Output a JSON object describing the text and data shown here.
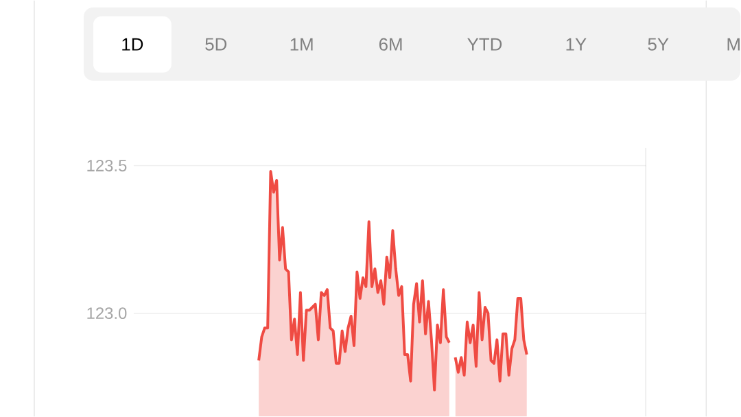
{
  "chart_data": {
    "type": "area",
    "annotations": [
      "1D",
      "5D",
      "1M",
      "6M",
      "YTD",
      "1Y",
      "5Y",
      "M"
    ],
    "categories": [
      null,
      null,
      null,
      null,
      null,
      null,
      null,
      null,
      null,
      null,
      null,
      null,
      null,
      null,
      null,
      null,
      null,
      null,
      null,
      null,
      null,
      null,
      null,
      null,
      null,
      null,
      null,
      null,
      null,
      null,
      null,
      null,
      null,
      null,
      null,
      null,
      null,
      null,
      null,
      null,
      null,
      null,
      null,
      null,
      null,
      null,
      null,
      null,
      null,
      null,
      null,
      null,
      null,
      null,
      null,
      null,
      null,
      null,
      null,
      null,
      null,
      null,
      null,
      null,
      null,
      null,
      null,
      null,
      null,
      null,
      null,
      null,
      null,
      null,
      null,
      null,
      null,
      null,
      null,
      null,
      null,
      null,
      null,
      null,
      null,
      null,
      null,
      null,
      null,
      null,
      null,
      null,
      null,
      null,
      null,
      null,
      null,
      null,
      null,
      null,
      null,
      null,
      null,
      null,
      null,
      null,
      null,
      null,
      null,
      null,
      null,
      null,
      null,
      null,
      null,
      null,
      null,
      null,
      null,
      null,
      null,
      null,
      null,
      null,
      null,
      null,
      null,
      null,
      null,
      null,
      null,
      null,
      null,
      null,
      null,
      null,
      null,
      null,
      null,
      null,
      null,
      null,
      null,
      null,
      null,
      null,
      null,
      null,
      null,
      null,
      null,
      null,
      null,
      null,
      null,
      null,
      null,
      null,
      null,
      null,
      null,
      null,
      null,
      null,
      null,
      null,
      null,
      null,
      null,
      null,
      null,
      null,
      null
    ],
    "series": [
      {
        "color": "#ef4b43",
        "values": [
          null,
          null,
          null,
          null,
          null,
          null,
          null,
          null,
          null,
          null,
          null,
          null,
          null,
          null,
          null,
          null,
          null,
          null,
          null,
          null,
          null,
          null,
          null,
          null,
          null,
          null,
          null,
          null,
          null,
          null,
          null,
          null,
          null,
          null,
          null,
          null,
          null,
          null,
          null,
          null,
          null,
          null,
          122.84,
          122.92,
          122.95,
          122.95,
          123.48,
          123.41,
          123.45,
          123.18,
          123.29,
          123.15,
          123.14,
          122.91,
          122.98,
          122.86,
          123.07,
          122.84,
          123.01,
          123.01,
          123.02,
          123.03,
          122.91,
          123.07,
          123.06,
          123.08,
          122.95,
          122.94,
          122.83,
          122.83,
          122.94,
          122.87,
          122.95,
          122.99,
          122.89,
          123.14,
          123.05,
          123.12,
          123.09,
          123.31,
          123.09,
          123.15,
          123.07,
          123.11,
          123.03,
          123.19,
          123.12,
          123.28,
          123.15,
          123.06,
          123.09,
          122.86,
          122.86,
          122.77,
          123.03,
          123.1,
          122.97,
          123.11,
          122.93,
          123.04,
          122.91,
          122.74,
          122.96,
          122.9,
          123.08,
          122.92,
          122.9,
          null,
          122.85,
          122.8,
          122.85,
          122.79,
          122.97,
          122.9,
          122.96,
          122.82,
          123.07,
          122.91,
          123.02,
          123.0,
          122.84,
          122.83,
          122.91,
          122.77,
          122.93,
          122.93,
          122.79,
          122.88,
          122.91,
          123.05,
          123.05,
          122.91,
          122.86,
          null,
          null,
          null,
          null,
          null,
          null,
          null,
          null,
          null,
          null,
          null,
          null,
          null,
          null,
          null,
          null,
          null,
          null,
          null,
          null,
          null,
          null,
          null,
          null,
          null,
          null,
          null,
          null,
          null,
          null,
          null,
          null,
          null,
          null,
          null,
          null,
          null,
          null,
          null,
          null
        ]
      }
    ],
    "ylim": [
      122.65,
      123.56
    ],
    "yticks": [
      {
        "value": 123,
        "label": "123.0"
      },
      123.5
    ],
    "grid": "y",
    "tick_labels": "y"
  }
}
